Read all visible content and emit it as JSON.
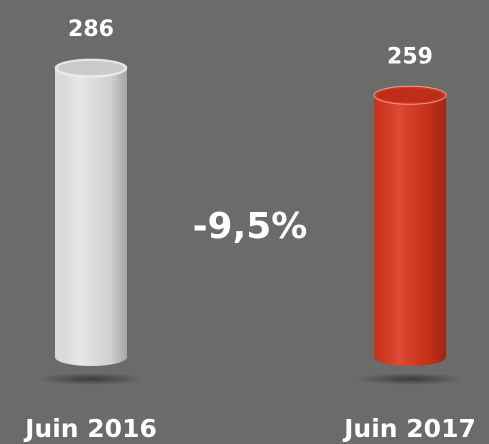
{
  "chart_data": {
    "type": "bar",
    "categories": [
      "Juin 2016",
      "Juin 2017"
    ],
    "values": [
      286,
      259
    ],
    "colors": [
      "#e6e6e6",
      "#d9341b"
    ],
    "annotation": "-9,5%"
  }
}
